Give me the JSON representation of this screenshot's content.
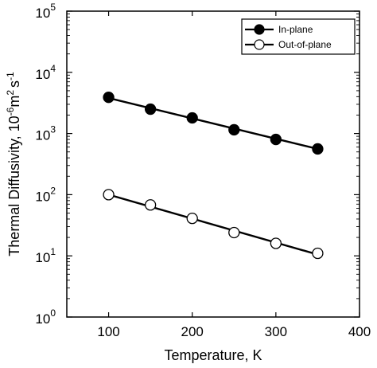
{
  "chart_data": {
    "type": "line",
    "title": "",
    "xlabel": "Temperature, K",
    "ylabel_main": "Thermal Diffusivity, 10",
    "ylabel_exp1": "-6",
    "ylabel_mid": "m",
    "ylabel_exp2": "2",
    "ylabel_mid2": "s",
    "ylabel_exp3": "-1",
    "xlim": [
      50,
      400
    ],
    "ylim": [
      1,
      100000
    ],
    "yscale": "log",
    "grid": false,
    "legend_position": "top-right",
    "x_ticks": [
      "100",
      "200",
      "300",
      "400"
    ],
    "x_tick_values": [
      100,
      200,
      300,
      400
    ],
    "y_ticks": [
      {
        "base": "10",
        "exp": "0",
        "value": 1
      },
      {
        "base": "10",
        "exp": "1",
        "value": 10
      },
      {
        "base": "10",
        "exp": "2",
        "value": 100
      },
      {
        "base": "10",
        "exp": "3",
        "value": 1000
      },
      {
        "base": "10",
        "exp": "4",
        "value": 10000
      },
      {
        "base": "10",
        "exp": "5",
        "value": 100000
      }
    ],
    "series": [
      {
        "name": "In-plane",
        "marker": "filled-circle",
        "color": "#000000",
        "x": [
          100,
          150,
          200,
          250,
          300,
          350
        ],
        "y": [
          3900,
          2500,
          1800,
          1150,
          800,
          560
        ],
        "fit_line": [
          [
            100,
            3800
          ],
          [
            350,
            560
          ]
        ]
      },
      {
        "name": "Out-of-plane",
        "marker": "open-circle",
        "color": "#000000",
        "x": [
          100,
          150,
          200,
          250,
          300,
          350
        ],
        "y": [
          100,
          68,
          41,
          24,
          16,
          11
        ],
        "fit_line": [
          [
            100,
            100
          ],
          [
            350,
            10.5
          ]
        ]
      }
    ]
  }
}
